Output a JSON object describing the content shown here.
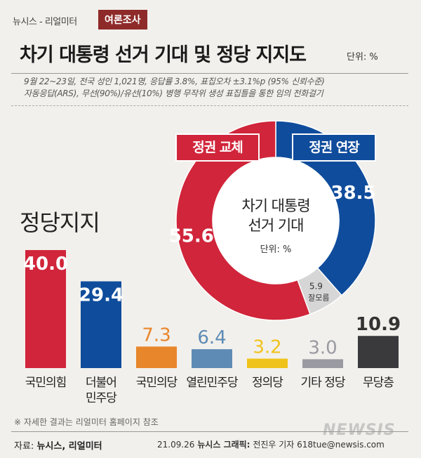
{
  "header": {
    "tag": "뉴시스 - 리얼미터",
    "category": "여론조사",
    "title": "차기 대통령 선거 기대 및 정당 지지도",
    "unit": "단위: %"
  },
  "info": {
    "line1": "9월 22~23일, 전국 성인 1,021명, 응답률 3.8%, 표집오차 ±3.1%p (95% 신뢰수준)",
    "line2": "자동응답(ARS), 무선(90%)/유선(10%) 병행 무작위 생성 표집틀을 통한 임의 전화걸기"
  },
  "chart_data": [
    {
      "type": "pie",
      "subtype": "donut",
      "title": "차기 대통령 선거 기대",
      "unit_label": "단위: %",
      "categories": [
        "정권 교체",
        "정권 연장",
        "잘모름"
      ],
      "values": [
        55.6,
        38.5,
        5.9
      ],
      "colors": [
        "#d0253a",
        "#0f4c9c",
        "#d6d6d6"
      ]
    },
    {
      "type": "bar",
      "title": "정당지지",
      "categories": [
        "국민의힘",
        "더불어\n민주당",
        "국민의당",
        "열린민주당",
        "정의당",
        "기타 정당",
        "무당층"
      ],
      "values": [
        40.0,
        29.4,
        7.3,
        6.4,
        3.2,
        3.0,
        10.9
      ],
      "value_labels": [
        "40.0",
        "29.4",
        "7.3",
        "6.4",
        "3.2",
        "3.0",
        "10.9"
      ],
      "colors": [
        "#d0253a",
        "#0f4c9c",
        "#e8862c",
        "#5e8bb5",
        "#f0c31a",
        "#9a9aa2",
        "#3a3a3c"
      ]
    }
  ],
  "footer": {
    "note": "※ 자세한 결과는 리얼미터 홈페이지 참조",
    "source_label": "자료:",
    "source": "뉴시스, 리얼미터",
    "date": "21.09.26",
    "graphic_label": "뉴시스 그래픽:",
    "credit": "전진우 기자 618tue@newsis.com",
    "watermark": "NEWSIS"
  }
}
